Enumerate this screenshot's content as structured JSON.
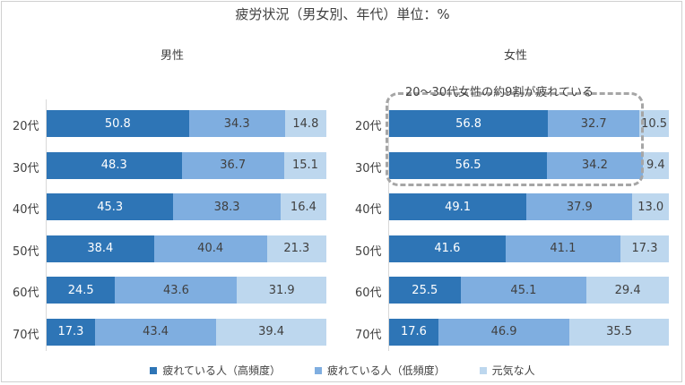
{
  "title": "疲労状況（男女別、年代）単位：%",
  "colors": {
    "series0": "#2e75b6",
    "series1": "#7faee0",
    "series2": "#bdd7ee"
  },
  "chart_data": [
    {
      "type": "bar",
      "orientation": "horizontal",
      "stacked": "100%",
      "title": "男性",
      "categories": [
        "20代",
        "30代",
        "40代",
        "50代",
        "60代",
        "70代"
      ],
      "series": [
        {
          "name": "疲れている人（高頻度）",
          "values": [
            50.8,
            48.3,
            45.3,
            38.4,
            24.5,
            17.3
          ]
        },
        {
          "name": "疲れている人（低頻度）",
          "values": [
            34.3,
            36.7,
            38.3,
            40.4,
            43.6,
            43.4
          ]
        },
        {
          "name": "元気な人",
          "values": [
            14.8,
            15.1,
            16.4,
            21.3,
            31.9,
            39.4
          ]
        }
      ]
    },
    {
      "type": "bar",
      "orientation": "horizontal",
      "stacked": "100%",
      "title": "女性",
      "categories": [
        "20代",
        "30代",
        "40代",
        "50代",
        "60代",
        "70代"
      ],
      "series": [
        {
          "name": "疲れている人（高頻度）",
          "values": [
            56.8,
            56.5,
            49.1,
            41.6,
            25.5,
            17.6
          ]
        },
        {
          "name": "疲れている人（低頻度）",
          "values": [
            32.7,
            34.2,
            37.9,
            41.1,
            45.1,
            46.9
          ]
        },
        {
          "name": "元気な人",
          "values": [
            10.5,
            9.4,
            13.0,
            17.3,
            29.4,
            35.5
          ]
        }
      ],
      "annotation": "20～30代女性の約9割が疲れている"
    }
  ],
  "legend": [
    {
      "label": "疲れている人（高頻度）",
      "color": "#2e75b6"
    },
    {
      "label": "疲れている人（低頻度）",
      "color": "#7faee0"
    },
    {
      "label": "元気な人",
      "color": "#bdd7ee"
    }
  ]
}
